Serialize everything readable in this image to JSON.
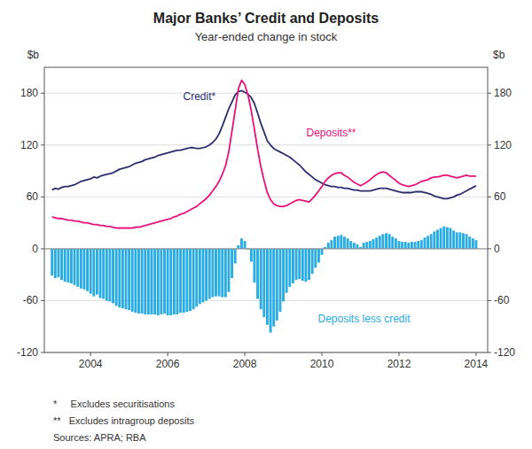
{
  "chart_data": {
    "type": "bar",
    "title": "Major Banks’ Credit and Deposits",
    "subtitle": "Year-ended change in stock",
    "ylabel": "$b",
    "y2label": "$b",
    "ylim": [
      -120,
      210
    ],
    "yticks": [
      -120,
      -60,
      0,
      60,
      120,
      180
    ],
    "y2lim": [
      -120,
      210
    ],
    "y2ticks": [
      -120,
      -60,
      0,
      60,
      120,
      180
    ],
    "xlim": [
      2002.8,
      2014.3
    ],
    "xticks": [
      2004,
      2006,
      2008,
      2010,
      2012,
      2014
    ],
    "grid": true,
    "footnotes": [
      "*     Excludes securitisations",
      "**   Excludes intragroup deposits",
      "Sources: APRA; RBA"
    ],
    "x": [
      2003.0,
      2003.083,
      2003.167,
      2003.25,
      2003.333,
      2003.417,
      2003.5,
      2003.583,
      2003.667,
      2003.75,
      2003.833,
      2003.917,
      2004.0,
      2004.083,
      2004.167,
      2004.25,
      2004.333,
      2004.417,
      2004.5,
      2004.583,
      2004.667,
      2004.75,
      2004.833,
      2004.917,
      2005.0,
      2005.083,
      2005.167,
      2005.25,
      2005.333,
      2005.417,
      2005.5,
      2005.583,
      2005.667,
      2005.75,
      2005.833,
      2005.917,
      2006.0,
      2006.083,
      2006.167,
      2006.25,
      2006.333,
      2006.417,
      2006.5,
      2006.583,
      2006.667,
      2006.75,
      2006.833,
      2006.917,
      2007.0,
      2007.083,
      2007.167,
      2007.25,
      2007.333,
      2007.417,
      2007.5,
      2007.583,
      2007.667,
      2007.75,
      2007.833,
      2007.917,
      2008.0,
      2008.083,
      2008.167,
      2008.25,
      2008.333,
      2008.417,
      2008.5,
      2008.583,
      2008.667,
      2008.75,
      2008.833,
      2008.917,
      2009.0,
      2009.083,
      2009.167,
      2009.25,
      2009.333,
      2009.417,
      2009.5,
      2009.583,
      2009.667,
      2009.75,
      2009.833,
      2009.917,
      2010.0,
      2010.083,
      2010.167,
      2010.25,
      2010.333,
      2010.417,
      2010.5,
      2010.583,
      2010.667,
      2010.75,
      2010.833,
      2010.917,
      2011.0,
      2011.083,
      2011.167,
      2011.25,
      2011.333,
      2011.417,
      2011.5,
      2011.583,
      2011.667,
      2011.75,
      2011.833,
      2011.917,
      2012.0,
      2012.083,
      2012.167,
      2012.25,
      2012.333,
      2012.417,
      2012.5,
      2012.583,
      2012.667,
      2012.75,
      2012.833,
      2012.917,
      2013.0,
      2013.083,
      2013.167,
      2013.25,
      2013.333,
      2013.417,
      2013.5,
      2013.583,
      2013.667,
      2013.75,
      2013.833,
      2013.917,
      2014.0
    ],
    "series": [
      {
        "name": "Deposits less credit",
        "type": "bar",
        "color": "#2AACE2",
        "values": [
          -31,
          -34,
          -33,
          -36,
          -38,
          -39,
          -40,
          -42,
          -44,
          -46,
          -47,
          -49,
          -52,
          -55,
          -53,
          -57,
          -58,
          -60,
          -61,
          -63,
          -66,
          -68,
          -69,
          -70,
          -71,
          -73,
          -74,
          -75,
          -75,
          -76,
          -76,
          -76,
          -76,
          -77,
          -76,
          -75,
          -77,
          -77,
          -76,
          -76,
          -74,
          -74,
          -73,
          -72,
          -70,
          -67,
          -64,
          -62,
          -60,
          -58,
          -56,
          -55,
          -55,
          -56,
          -56,
          -50,
          -34,
          -17,
          4,
          12,
          9,
          -1,
          -15,
          -39,
          -58,
          -70,
          -79,
          -88,
          -97,
          -90,
          -83,
          -73,
          -61,
          -51,
          -44,
          -40,
          -36,
          -35,
          -37,
          -38,
          -36,
          -29,
          -22,
          -16,
          -7,
          2,
          7,
          10,
          14,
          15,
          16,
          14,
          12,
          9,
          7,
          5,
          2,
          7,
          8,
          9,
          11,
          13,
          15,
          17,
          18,
          17,
          14,
          12,
          9,
          8,
          8,
          7,
          8,
          8,
          9,
          10,
          13,
          15,
          17,
          20,
          22,
          24,
          26,
          25,
          24,
          21,
          19,
          19,
          18,
          17,
          14,
          12,
          10
        ]
      },
      {
        "name": "Credit*",
        "type": "line",
        "color": "#2B2D6E",
        "values": [
          68,
          70,
          69,
          71,
          72,
          72,
          73,
          74,
          76,
          78,
          79,
          80,
          81,
          83,
          82,
          84,
          85,
          86,
          87,
          88,
          90,
          92,
          93,
          94,
          95,
          97,
          99,
          100,
          101,
          103,
          104,
          105,
          106,
          108,
          109,
          110,
          111,
          112,
          113,
          114,
          114,
          115,
          116,
          117,
          117,
          116,
          116,
          117,
          118,
          120,
          123,
          127,
          133,
          142,
          152,
          162,
          170,
          178,
          182,
          183,
          181,
          179,
          175,
          168,
          157,
          145,
          135,
          125,
          120,
          116,
          114,
          112,
          110,
          108,
          106,
          103,
          100,
          97,
          93,
          89,
          86,
          83,
          80,
          78,
          76,
          74,
          73,
          72,
          72,
          71,
          71,
          70,
          70,
          69,
          68,
          68,
          67,
          67,
          67,
          67,
          68,
          69,
          70,
          70,
          70,
          69,
          68,
          67,
          66,
          65,
          65,
          65,
          65,
          66,
          66,
          66,
          65,
          64,
          63,
          61,
          60,
          59,
          58,
          58,
          59,
          60,
          62,
          63,
          65,
          67,
          69,
          71,
          73
        ]
      },
      {
        "name": "Deposits**",
        "type": "line",
        "color": "#E8127C",
        "values": [
          37,
          36,
          35,
          35,
          34,
          33,
          33,
          32,
          32,
          31,
          30,
          30,
          29,
          28,
          28,
          27,
          27,
          26,
          26,
          25,
          24,
          24,
          24,
          24,
          24,
          24,
          25,
          25,
          26,
          27,
          28,
          29,
          30,
          31,
          32,
          33,
          34,
          35,
          37,
          38,
          40,
          41,
          43,
          45,
          47,
          49,
          52,
          55,
          58,
          62,
          67,
          72,
          78,
          86,
          96,
          112,
          136,
          160,
          185,
          195,
          190,
          178,
          160,
          138,
          115,
          95,
          79,
          65,
          57,
          52,
          50,
          49,
          49,
          50,
          52,
          54,
          56,
          57,
          56,
          55,
          54,
          58,
          62,
          67,
          72,
          78,
          82,
          85,
          87,
          88,
          88,
          85,
          83,
          80,
          77,
          75,
          73,
          75,
          77,
          80,
          83,
          86,
          88,
          89,
          88,
          85,
          82,
          79,
          76,
          74,
          73,
          72,
          73,
          74,
          76,
          78,
          79,
          80,
          82,
          83,
          83,
          84,
          85,
          85,
          84,
          83,
          82,
          83,
          84,
          85,
          84,
          84,
          84
        ]
      }
    ]
  }
}
